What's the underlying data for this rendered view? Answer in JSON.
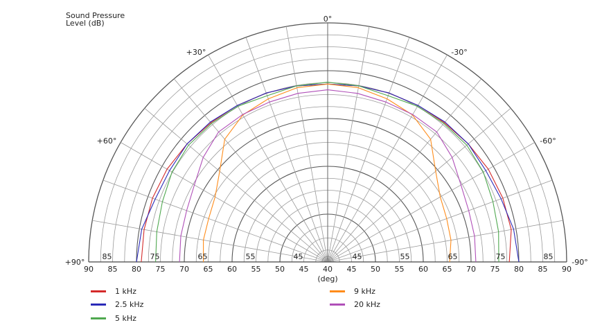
{
  "chart_data": {
    "type": "polar",
    "ylabel_line1": "Sound Pressure",
    "ylabel_line2": "Level  (dB)",
    "xlabel": "(deg)",
    "radial_range": [
      40,
      90
    ],
    "radial_tick_labels_left": [
      "90",
      "85",
      "80",
      "75",
      "70",
      "65",
      "60",
      "55",
      "50",
      "45",
      "40"
    ],
    "radial_tick_labels_right": [
      "45",
      "50",
      "55",
      "60",
      "65",
      "70",
      "75",
      "80",
      "85",
      "90"
    ],
    "angle_labels": [
      {
        "angle": 0,
        "text": "0°"
      },
      {
        "angle": 30,
        "text": "+30°"
      },
      {
        "angle": -30,
        "text": "-30°"
      },
      {
        "angle": 60,
        "text": "+60°"
      },
      {
        "angle": -60,
        "text": "-60°"
      },
      {
        "angle": 90,
        "text": "+90°"
      },
      {
        "angle": -90,
        "text": "-90°"
      }
    ],
    "angles": [
      90,
      80,
      70,
      60,
      50,
      40,
      30,
      20,
      10,
      0,
      -10,
      -20,
      -30,
      -40,
      -50,
      -60,
      -70,
      -80,
      -90
    ],
    "series": [
      {
        "name": "1 kHz",
        "color": "#d42a2a",
        "values": [
          79.0,
          79.0,
          79.0,
          78.8,
          78.4,
          78.0,
          77.8,
          77.6,
          77.4,
          77.2,
          77.4,
          77.6,
          77.8,
          78.0,
          78.4,
          78.8,
          79.0,
          79.0,
          78.0
        ]
      },
      {
        "name": "2.5 kHz",
        "color": "#2a2ab8",
        "values": [
          80.0,
          79.5,
          78.4,
          78.2,
          78.4,
          78.2,
          77.8,
          77.6,
          77.4,
          77.2,
          77.4,
          77.6,
          77.8,
          78.2,
          78.4,
          78.2,
          78.6,
          79.5,
          80.0
        ]
      },
      {
        "name": "5 kHz",
        "color": "#4fa84f",
        "values": [
          76.0,
          76.3,
          76.8,
          77.6,
          78.0,
          77.8,
          77.6,
          77.0,
          77.4,
          77.6,
          77.4,
          77.0,
          77.6,
          77.8,
          78.0,
          77.6,
          76.8,
          76.3,
          75.8
        ]
      },
      {
        "name": "9 kHz",
        "color": "#ff8c1a",
        "values": [
          66.0,
          66.4,
          66.5,
          67.2,
          69.5,
          73.5,
          75.5,
          76.3,
          77.0,
          77.2,
          77.0,
          76.3,
          75.5,
          73.5,
          69.5,
          67.2,
          66.5,
          66.2,
          65.5
        ]
      },
      {
        "name": "20 kHz",
        "color": "#b04fb8",
        "values": [
          71.0,
          71.2,
          71.4,
          72.2,
          74.0,
          75.5,
          75.6,
          75.6,
          75.8,
          76.0,
          75.8,
          75.6,
          75.6,
          75.5,
          74.0,
          72.2,
          71.4,
          71.2,
          71.0
        ]
      }
    ],
    "legend_placement": "bottom",
    "grid": true
  }
}
